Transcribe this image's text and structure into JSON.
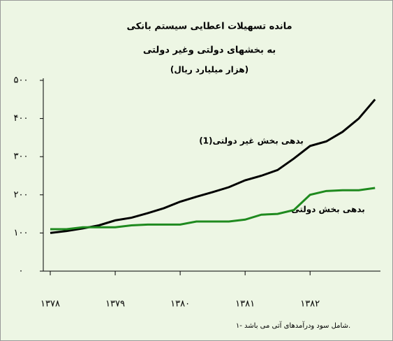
{
  "chart_data": {
    "type": "line",
    "title": "مانده تسهیلات اعطایی سیستم بانکی",
    "subtitle": "به بخشهای دولتی وغیر دولتی",
    "y_label": "(هزار میلیارد ریال)",
    "annotations": [
      "بدهی بخش غیر دولتی(1)",
      "بدهی بخش دولتی"
    ],
    "footnote": "۱- شامل سود ودرآمدهای آتی می باشد.",
    "x": [
      0,
      3,
      6,
      9,
      12,
      15,
      18,
      21,
      24,
      27,
      30,
      33,
      36,
      39,
      42,
      45,
      48,
      51,
      54,
      57,
      60
    ],
    "series": [
      {
        "color": "#000000",
        "values": [
          100,
          105,
          112,
          120,
          133,
          140,
          152,
          165,
          182,
          195,
          207,
          220,
          238,
          250,
          265,
          295,
          328,
          340,
          365,
          400,
          450
        ]
      },
      {
        "color": "#1f8a1f",
        "values": [
          110,
          110,
          115,
          115,
          115,
          120,
          122,
          122,
          122,
          130,
          130,
          130,
          135,
          148,
          150,
          160,
          200,
          210,
          212,
          212,
          218
        ]
      }
    ],
    "xlim": [
      0,
      61
    ],
    "xticks": [
      {
        "value": 0,
        "label": "۱۳۷۸"
      },
      {
        "value": 12,
        "label": "۱۳۷۹"
      },
      {
        "value": 24,
        "label": "۱۳۸۰"
      },
      {
        "value": 36,
        "label": "۱۳۸۱"
      },
      {
        "value": 48,
        "label": "۱۳۸۲"
      }
    ],
    "ylim": [
      0,
      500
    ],
    "yticks": [
      {
        "value": 0,
        "label": "۰"
      },
      {
        "value": 100,
        "label": "۱۰۰"
      },
      {
        "value": 200,
        "label": "۲۰۰"
      },
      {
        "value": 300,
        "label": "۳۰۰"
      },
      {
        "value": 400,
        "label": "۴۰۰"
      },
      {
        "value": 500,
        "label": "۵۰۰"
      }
    ]
  }
}
